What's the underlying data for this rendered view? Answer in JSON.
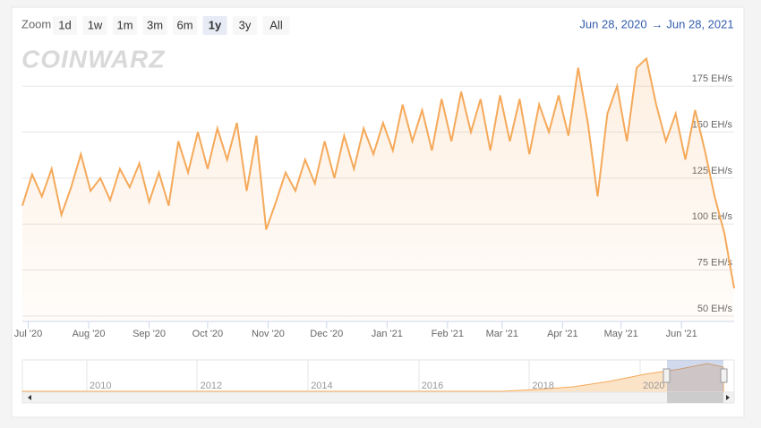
{
  "toolbar": {
    "zoom_label": "Zoom",
    "buttons": [
      "1d",
      "1w",
      "1m",
      "3m",
      "6m",
      "1y",
      "3y",
      "All"
    ],
    "selected": "1y",
    "range_from": "Jun 28, 2020",
    "range_arrow": "→",
    "range_to": "Jun 28, 2021"
  },
  "watermark": "COINWARZ",
  "navigator": {
    "labels": [
      "2010",
      "2012",
      "2014",
      "2016",
      "2018",
      "2020"
    ]
  },
  "chart_data": {
    "type": "line",
    "color": "#f5a95a",
    "grid": true,
    "xlim": [
      "2020-06-28",
      "2021-06-28"
    ],
    "xticks": [
      {
        "value": "2020-07-01",
        "label": "Jul '20"
      },
      {
        "value": "2020-08-01",
        "label": "Aug '20"
      },
      {
        "value": "2020-09-01",
        "label": "Sep '20"
      },
      {
        "value": "2020-10-01",
        "label": "Oct '20"
      },
      {
        "value": "2020-11-01",
        "label": "Nov '20"
      },
      {
        "value": "2020-12-01",
        "label": "Dec '20"
      },
      {
        "value": "2021-01-01",
        "label": "Jan '21"
      },
      {
        "value": "2021-02-01",
        "label": "Feb '21"
      },
      {
        "value": "2021-03-01",
        "label": "Mar '21"
      },
      {
        "value": "2021-04-01",
        "label": "Apr '21"
      },
      {
        "value": "2021-05-01",
        "label": "May '21"
      },
      {
        "value": "2021-06-01",
        "label": "Jun '21"
      }
    ],
    "ylim": [
      47.5,
      197.5
    ],
    "yticks": [
      {
        "value": 50,
        "label": "50 EH/s"
      },
      {
        "value": 75,
        "label": "75 EH/s"
      },
      {
        "value": 100,
        "label": "100 EH/s"
      },
      {
        "value": 125,
        "label": "125 EH/s"
      },
      {
        "value": 150,
        "label": "150 EH/s"
      },
      {
        "value": 175,
        "label": "175 EH/s"
      }
    ],
    "x": [
      "2020-06-28",
      "2020-07-03",
      "2020-07-08",
      "2020-07-13",
      "2020-07-18",
      "2020-07-23",
      "2020-07-28",
      "2020-08-02",
      "2020-08-07",
      "2020-08-12",
      "2020-08-17",
      "2020-08-22",
      "2020-08-27",
      "2020-09-01",
      "2020-09-06",
      "2020-09-11",
      "2020-09-16",
      "2020-09-21",
      "2020-09-26",
      "2020-10-01",
      "2020-10-06",
      "2020-10-11",
      "2020-10-16",
      "2020-10-21",
      "2020-10-26",
      "2020-10-31",
      "2020-11-05",
      "2020-11-10",
      "2020-11-15",
      "2020-11-20",
      "2020-11-25",
      "2020-11-30",
      "2020-12-05",
      "2020-12-10",
      "2020-12-15",
      "2020-12-20",
      "2020-12-25",
      "2020-12-30",
      "2021-01-04",
      "2021-01-09",
      "2021-01-14",
      "2021-01-19",
      "2021-01-24",
      "2021-01-29",
      "2021-02-03",
      "2021-02-08",
      "2021-02-13",
      "2021-02-18",
      "2021-02-23",
      "2021-02-28",
      "2021-03-05",
      "2021-03-10",
      "2021-03-15",
      "2021-03-20",
      "2021-03-25",
      "2021-03-30",
      "2021-04-04",
      "2021-04-09",
      "2021-04-14",
      "2021-04-19",
      "2021-04-24",
      "2021-04-29",
      "2021-05-04",
      "2021-05-09",
      "2021-05-14",
      "2021-05-19",
      "2021-05-24",
      "2021-05-29",
      "2021-06-03",
      "2021-06-08",
      "2021-06-13",
      "2021-06-18",
      "2021-06-23",
      "2021-06-28"
    ],
    "values": [
      110,
      127,
      115,
      130,
      105,
      120,
      138,
      118,
      125,
      113,
      130,
      120,
      133,
      112,
      128,
      110,
      145,
      128,
      150,
      130,
      152,
      135,
      155,
      118,
      148,
      97,
      112,
      128,
      118,
      135,
      122,
      145,
      125,
      148,
      130,
      152,
      138,
      155,
      140,
      165,
      145,
      162,
      140,
      168,
      145,
      172,
      150,
      168,
      140,
      170,
      145,
      168,
      138,
      165,
      150,
      170,
      148,
      185,
      155,
      115,
      160,
      175,
      145,
      185,
      190,
      165,
      145,
      160,
      135,
      162,
      140,
      115,
      95,
      65
    ]
  }
}
